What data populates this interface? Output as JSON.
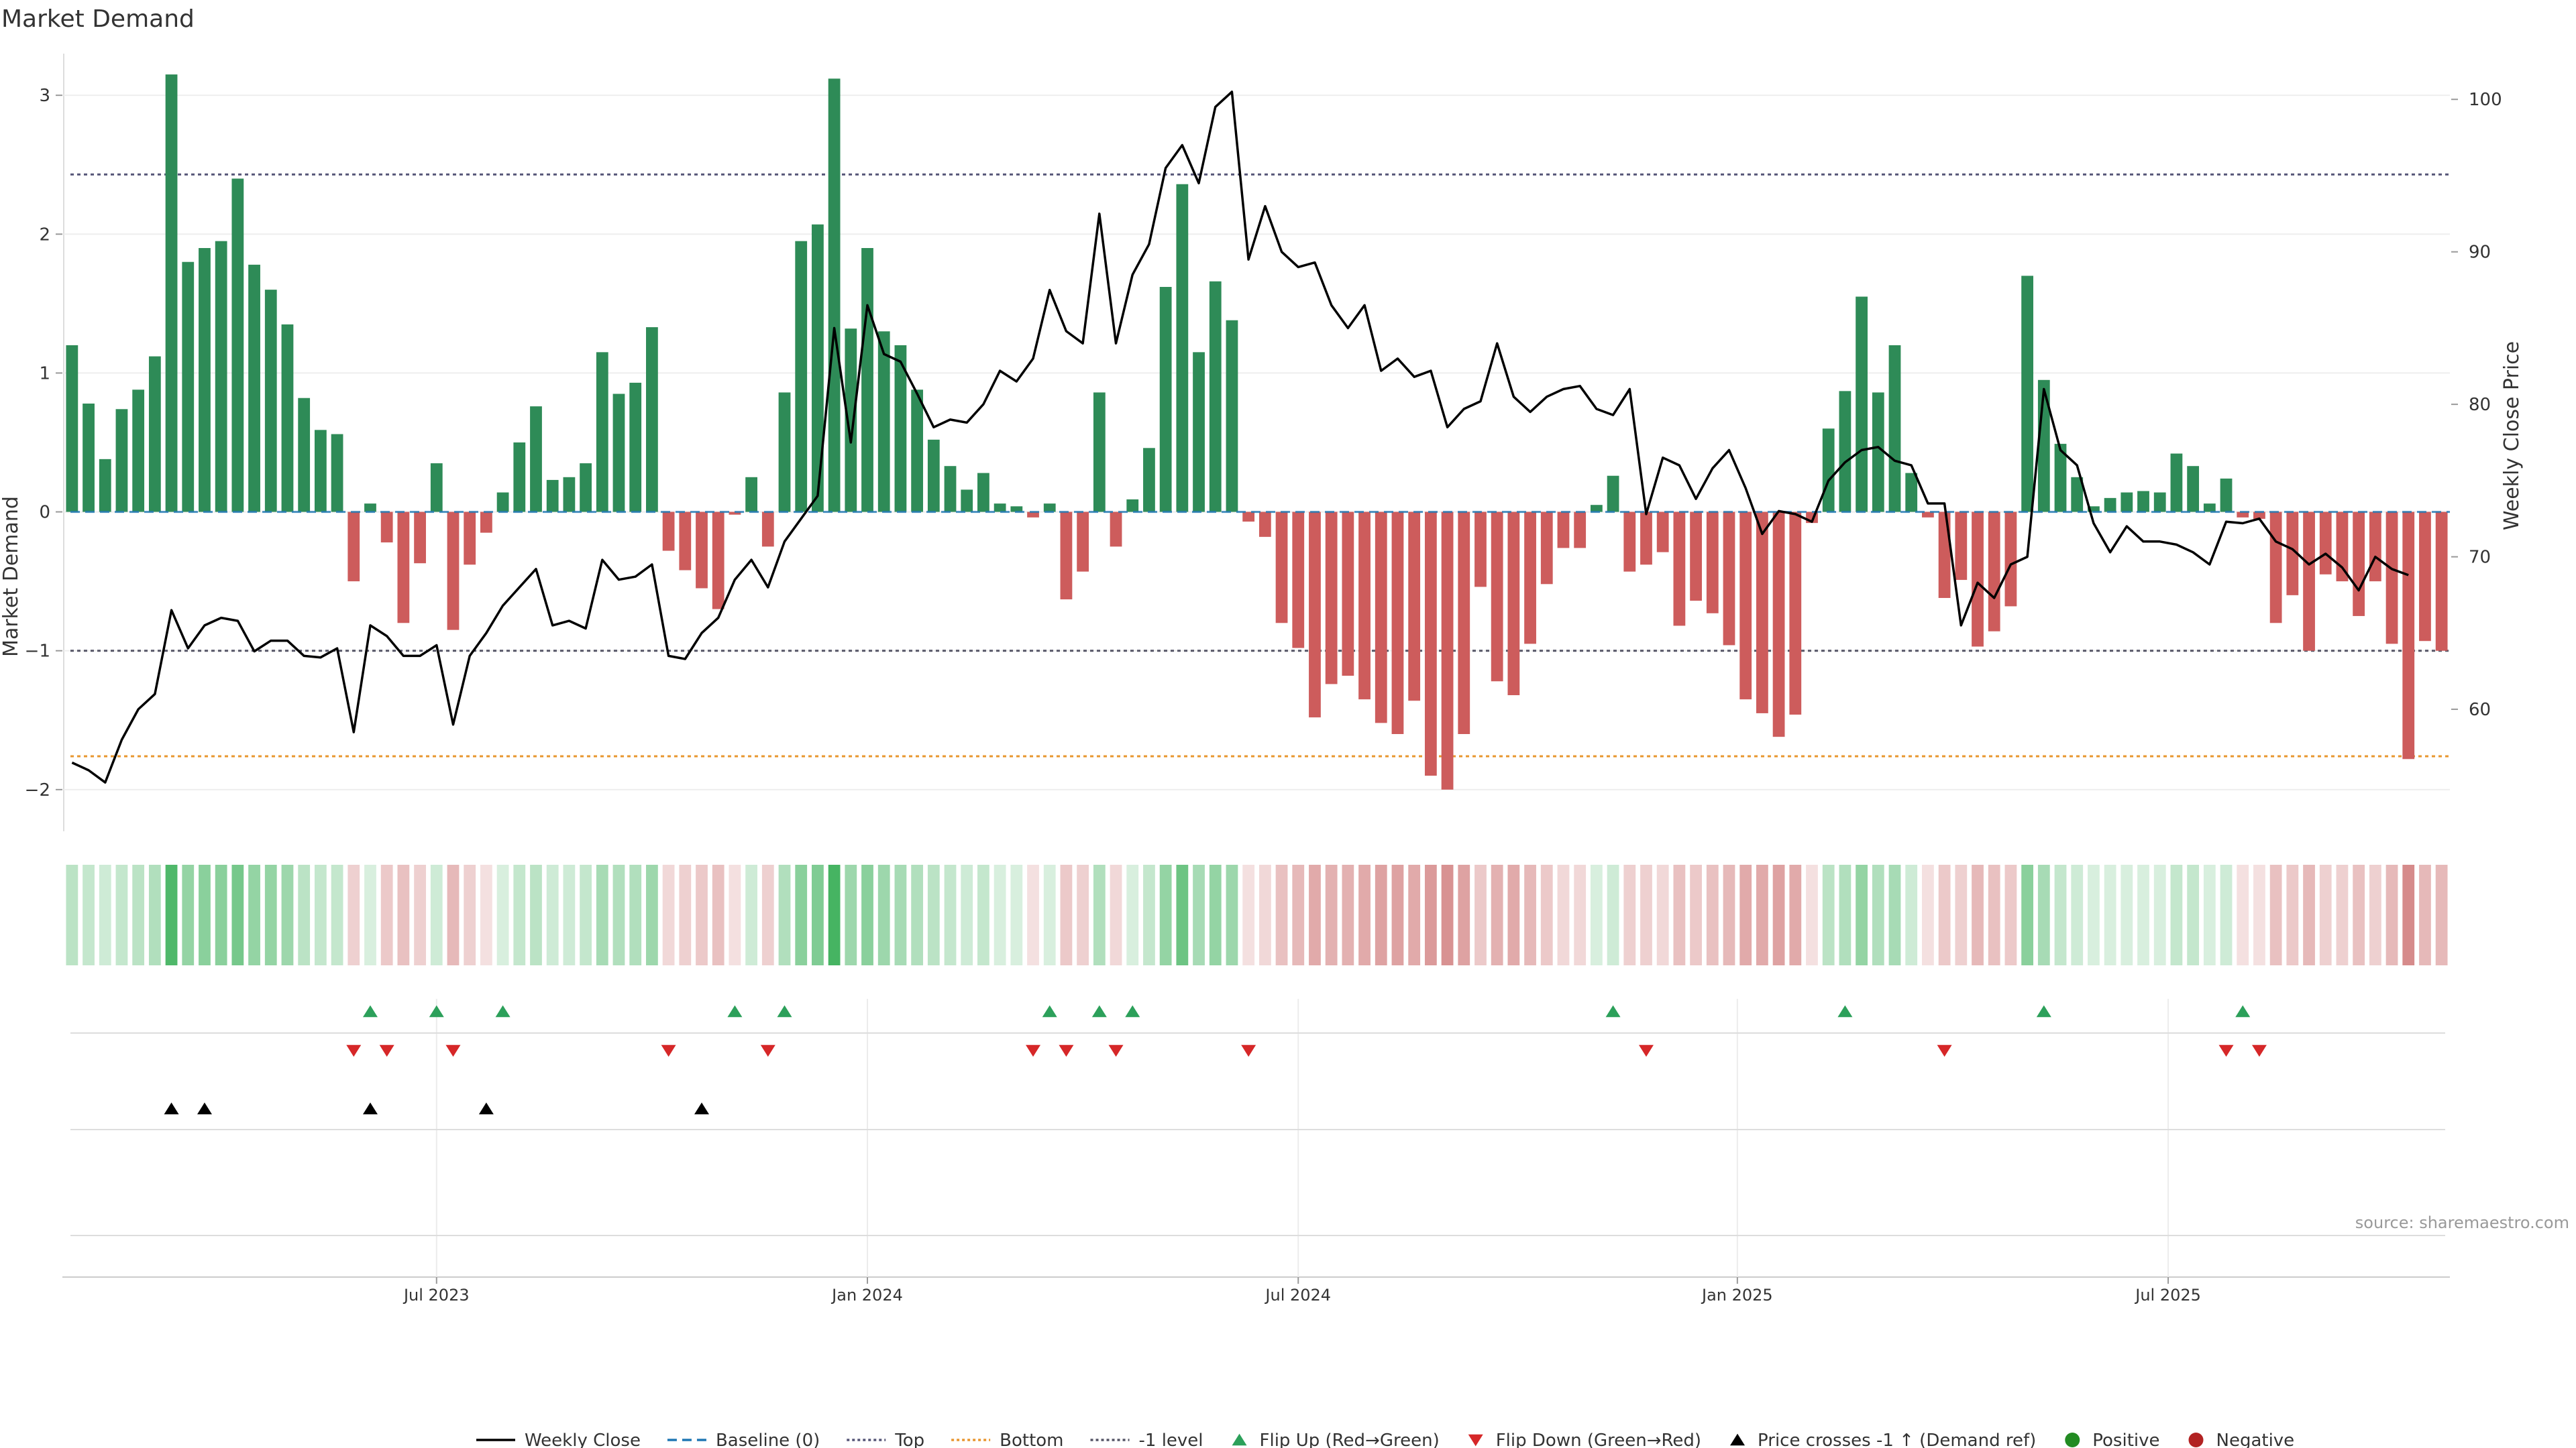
{
  "chart_data": {
    "type": "bar",
    "title": "Market Demand",
    "ylabel_left": "Market Demand",
    "ylabel_right": "Weekly Close Price",
    "ylim_left": [
      -2.3,
      3.3
    ],
    "ylim_right": [
      52,
      103
    ],
    "yticks_left": [
      3,
      2,
      1,
      0,
      -1,
      -2
    ],
    "ytick_labels_left": [
      "3",
      "2",
      "1",
      "0",
      "−1",
      "−2"
    ],
    "yticks_right": [
      100,
      90,
      80,
      70,
      60
    ],
    "ytick_labels_right": [
      "100",
      "90",
      "80",
      "70",
      "60"
    ],
    "x_ticks": [
      {
        "label": "Jul 2023",
        "week": 22
      },
      {
        "label": "Jan 2024",
        "week": 48
      },
      {
        "label": "Jul 2024",
        "week": 74
      },
      {
        "label": "Jan 2025",
        "week": 100.5
      },
      {
        "label": "Jul 2025",
        "week": 126.5
      }
    ],
    "reference_lines": {
      "baseline": 0,
      "top": 2.43,
      "bottom": -1.76,
      "minus_one": -1
    },
    "demand": [
      1.2,
      0.78,
      0.38,
      0.74,
      0.88,
      1.12,
      3.15,
      1.8,
      1.9,
      1.95,
      2.4,
      1.78,
      1.6,
      1.35,
      0.82,
      0.59,
      0.56,
      -0.5,
      0.06,
      -0.22,
      -0.8,
      -0.37,
      0.35,
      -0.85,
      -0.38,
      -0.15,
      0.14,
      0.5,
      0.76,
      0.23,
      0.25,
      0.35,
      1.15,
      0.85,
      0.93,
      1.33,
      -0.28,
      -0.42,
      -0.55,
      -0.7,
      -0.02,
      0.25,
      -0.25,
      0.86,
      1.95,
      2.07,
      3.12,
      1.32,
      1.9,
      1.3,
      1.2,
      0.88,
      0.52,
      0.33,
      0.16,
      0.28,
      0.06,
      0.04,
      -0.04,
      0.06,
      -0.63,
      -0.43,
      0.86,
      -0.25,
      0.09,
      0.46,
      1.62,
      2.36,
      1.15,
      1.66,
      1.38,
      -0.07,
      -0.18,
      -0.8,
      -0.98,
      -1.48,
      -1.24,
      -1.18,
      -1.35,
      -1.52,
      -1.6,
      -1.36,
      -1.9,
      -2.0,
      -1.6,
      -0.54,
      -1.22,
      -1.32,
      -0.95,
      -0.52,
      -0.26,
      -0.26,
      0.05,
      0.26,
      -0.43,
      -0.38,
      -0.29,
      -0.82,
      -0.64,
      -0.73,
      -0.96,
      -1.35,
      -1.45,
      -1.62,
      -1.46,
      -0.08,
      0.6,
      0.87,
      1.55,
      0.86,
      1.2,
      0.28,
      -0.04,
      -0.62,
      -0.49,
      -0.97,
      -0.86,
      -0.68,
      1.7,
      0.95,
      0.49,
      0.25,
      0.04,
      0.1,
      0.14,
      0.15,
      0.14,
      0.42,
      0.33,
      0.06,
      0.24,
      -0.04,
      -0.05,
      -0.8,
      -0.6,
      -1.0,
      -0.45,
      -0.5,
      -0.75,
      -0.5,
      -0.95,
      -1.78,
      -0.93,
      -1.0
    ],
    "close": [
      56.5,
      56,
      55.2,
      58,
      60,
      61,
      66.5,
      64,
      65.5,
      66,
      65.8,
      63.8,
      64.5,
      64.5,
      63.5,
      63.4,
      64,
      58.5,
      65.5,
      64.8,
      63.5,
      63.5,
      64.2,
      59,
      63.5,
      65,
      66.8,
      68,
      69.2,
      65.5,
      65.8,
      65.3,
      69.8,
      68.5,
      68.7,
      69.5,
      63.5,
      63.3,
      65,
      66,
      68.5,
      69.8,
      68,
      71,
      72.5,
      74,
      85,
      77.5,
      86.5,
      83.3,
      82.8,
      80.7,
      78.5,
      79,
      78.8,
      80,
      82.2,
      81.5,
      83,
      87.5,
      84.8,
      84,
      92.5,
      84,
      88.5,
      90.5,
      95.5,
      97,
      94.5,
      99.5,
      100.5,
      89.5,
      93,
      90,
      89,
      89.3,
      86.5,
      85,
      86.5,
      82.2,
      83,
      81.8,
      82.2,
      78.5,
      79.7,
      80.2,
      84,
      80.5,
      79.5,
      80.5,
      81,
      81.2,
      79.7,
      79.3,
      81,
      72.8,
      76.5,
      76,
      73.8,
      75.8,
      77,
      74.5,
      71.5,
      73,
      72.8,
      72.3,
      75,
      76.2,
      77,
      77.2,
      76.3,
      76,
      73.5,
      73.5,
      65.5,
      68.3,
      67.3,
      69.5,
      70,
      81,
      77,
      76,
      72.2,
      70.3,
      72,
      71,
      71,
      70.8,
      70.3,
      69.5,
      72.3,
      72.2,
      72.5,
      71,
      70.5,
      69.5,
      70.2,
      69.3,
      67.8,
      70,
      69.2,
      68.8
    ],
    "strip_alpha": [
      0.35,
      0.3,
      0.25,
      0.3,
      0.35,
      0.4,
      0.9,
      0.55,
      0.6,
      0.6,
      0.7,
      0.55,
      0.55,
      0.5,
      0.35,
      0.3,
      0.3,
      0.3,
      0.2,
      0.35,
      0.4,
      0.3,
      0.25,
      0.45,
      0.3,
      0.2,
      0.2,
      0.3,
      0.35,
      0.25,
      0.25,
      0.3,
      0.45,
      0.4,
      0.4,
      0.5,
      0.25,
      0.3,
      0.35,
      0.4,
      0.2,
      0.25,
      0.3,
      0.4,
      0.6,
      0.65,
      0.95,
      0.5,
      0.6,
      0.5,
      0.45,
      0.4,
      0.35,
      0.3,
      0.25,
      0.3,
      0.2,
      0.2,
      0.2,
      0.2,
      0.35,
      0.3,
      0.4,
      0.25,
      0.2,
      0.3,
      0.55,
      0.75,
      0.45,
      0.55,
      0.5,
      0.2,
      0.25,
      0.4,
      0.45,
      0.55,
      0.5,
      0.5,
      0.55,
      0.6,
      0.6,
      0.55,
      0.65,
      0.7,
      0.6,
      0.35,
      0.5,
      0.55,
      0.45,
      0.35,
      0.25,
      0.25,
      0.2,
      0.25,
      0.3,
      0.3,
      0.25,
      0.4,
      0.35,
      0.4,
      0.45,
      0.55,
      0.55,
      0.6,
      0.55,
      0.2,
      0.35,
      0.4,
      0.55,
      0.4,
      0.45,
      0.25,
      0.2,
      0.35,
      0.3,
      0.45,
      0.4,
      0.35,
      0.6,
      0.45,
      0.3,
      0.25,
      0.2,
      0.2,
      0.2,
      0.2,
      0.2,
      0.3,
      0.3,
      0.2,
      0.25,
      0.2,
      0.2,
      0.4,
      0.35,
      0.45,
      0.3,
      0.3,
      0.4,
      0.3,
      0.45,
      0.75,
      0.45,
      0.45
    ],
    "flip_up_weeks": [
      18,
      22,
      26,
      40,
      43,
      59,
      62,
      64,
      93,
      107,
      119,
      131
    ],
    "flip_down_weeks": [
      17,
      19,
      23,
      36,
      42,
      58,
      60,
      63,
      71,
      95,
      113,
      130,
      132
    ],
    "price_cross_weeks": [
      6,
      8,
      18,
      25,
      38
    ],
    "legend": [
      {
        "label": "Weekly Close",
        "kind": "line",
        "color": "#000000",
        "dash": ""
      },
      {
        "label": "Baseline (0)",
        "kind": "line",
        "color": "#1f77b4",
        "dash": "14 8"
      },
      {
        "label": "Top",
        "kind": "line",
        "color": "#555577",
        "dash": "4 4"
      },
      {
        "label": "Bottom",
        "kind": "line",
        "color": "#e8962f",
        "dash": "4 4"
      },
      {
        "label": "-1 level",
        "kind": "line",
        "color": "#555566",
        "dash": "4 4"
      },
      {
        "label": "Flip Up (Red→Green)",
        "kind": "tri-up",
        "color": "#2ca05a"
      },
      {
        "label": "Flip Down (Green→Red)",
        "kind": "tri-down",
        "color": "#d62728"
      },
      {
        "label": "Price crosses -1 ↑ (Demand ref)",
        "kind": "tri-up",
        "color": "#000000"
      },
      {
        "label": "Positive",
        "kind": "dot",
        "color": "#228b22"
      },
      {
        "label": "Negative",
        "kind": "dot",
        "color": "#b22222"
      }
    ],
    "colors": {
      "positive_bar": "#2e8b57",
      "negative_bar": "#cd5c5c",
      "strip_positive": "#3cb05a",
      "strip_negative": "#c86464",
      "close_line": "#000000"
    }
  },
  "title": "Market Demand",
  "source": "source: sharemaestro.com"
}
